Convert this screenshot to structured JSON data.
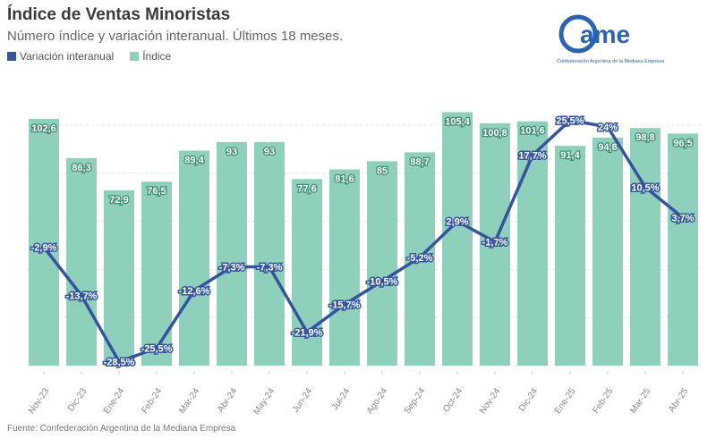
{
  "header": {
    "title": "Índice de Ventas Minoristas",
    "subtitle": "Número índice y variación interanual. Últimos 18 meses."
  },
  "logo": {
    "text": "came",
    "caption": "Confederación Argentina de la Mediana Empresa"
  },
  "source": "Fuente: Confederación Argentina de la Mediana Empresa",
  "colors": {
    "bar": "#8fd0bd",
    "line": "#34549c",
    "bar_label": "#3d8a74"
  },
  "chart_data": {
    "type": "bar",
    "title": "Índice de Ventas Minoristas",
    "categories": [
      "Nov-23",
      "Dic-23",
      "Ene-24",
      "Feb-24",
      "Mar-24",
      "Abr-24",
      "May-24",
      "Jun-24",
      "Jul-24",
      "Ago-24",
      "Sep-24",
      "Oct-24",
      "Nov-24",
      "Dic-24",
      "Ene-25",
      "Feb-25",
      "Mar-25",
      "Abr-25"
    ],
    "legend_position": "top-left",
    "series": [
      {
        "name": "Variación interanual",
        "type": "line",
        "values": [
          -2.9,
          -13.7,
          -28.5,
          -25.5,
          -12.6,
          -7.3,
          -7.3,
          -21.9,
          -15.7,
          -10.5,
          -5.2,
          2.9,
          -1.7,
          17.7,
          25.5,
          24,
          10.5,
          3.7
        ],
        "labels": [
          "-2,9%",
          "-13,7%",
          "-28,5%",
          "-25,5%",
          "-12,6%",
          "-7,3%",
          "-7,3%",
          "-21,9%",
          "-15,7%",
          "-10,5%",
          "-5,2%",
          "2,9%",
          "-1,7%",
          "17,7%",
          "25,5%",
          "24%",
          "10,5%",
          "3,7%"
        ]
      },
      {
        "name": "Índice",
        "type": "bar",
        "values": [
          102.6,
          86.3,
          72.9,
          76.5,
          89.4,
          93,
          93,
          77.6,
          81.6,
          85,
          88.7,
          105.4,
          100.8,
          101.6,
          91.4,
          94.8,
          98.8,
          96.5
        ],
        "labels": [
          "102,6",
          "86,3",
          "72,9",
          "76,5",
          "89,4",
          "93",
          "93",
          "77,6",
          "81,6",
          "85",
          "88,7",
          "105,4",
          "100,8",
          "101,6",
          "91,4",
          "94,8",
          "98,8",
          "96,5"
        ]
      }
    ],
    "ylim_bars": [
      0,
      110
    ],
    "ylim_line": [
      -30,
      28
    ],
    "grid": true
  }
}
